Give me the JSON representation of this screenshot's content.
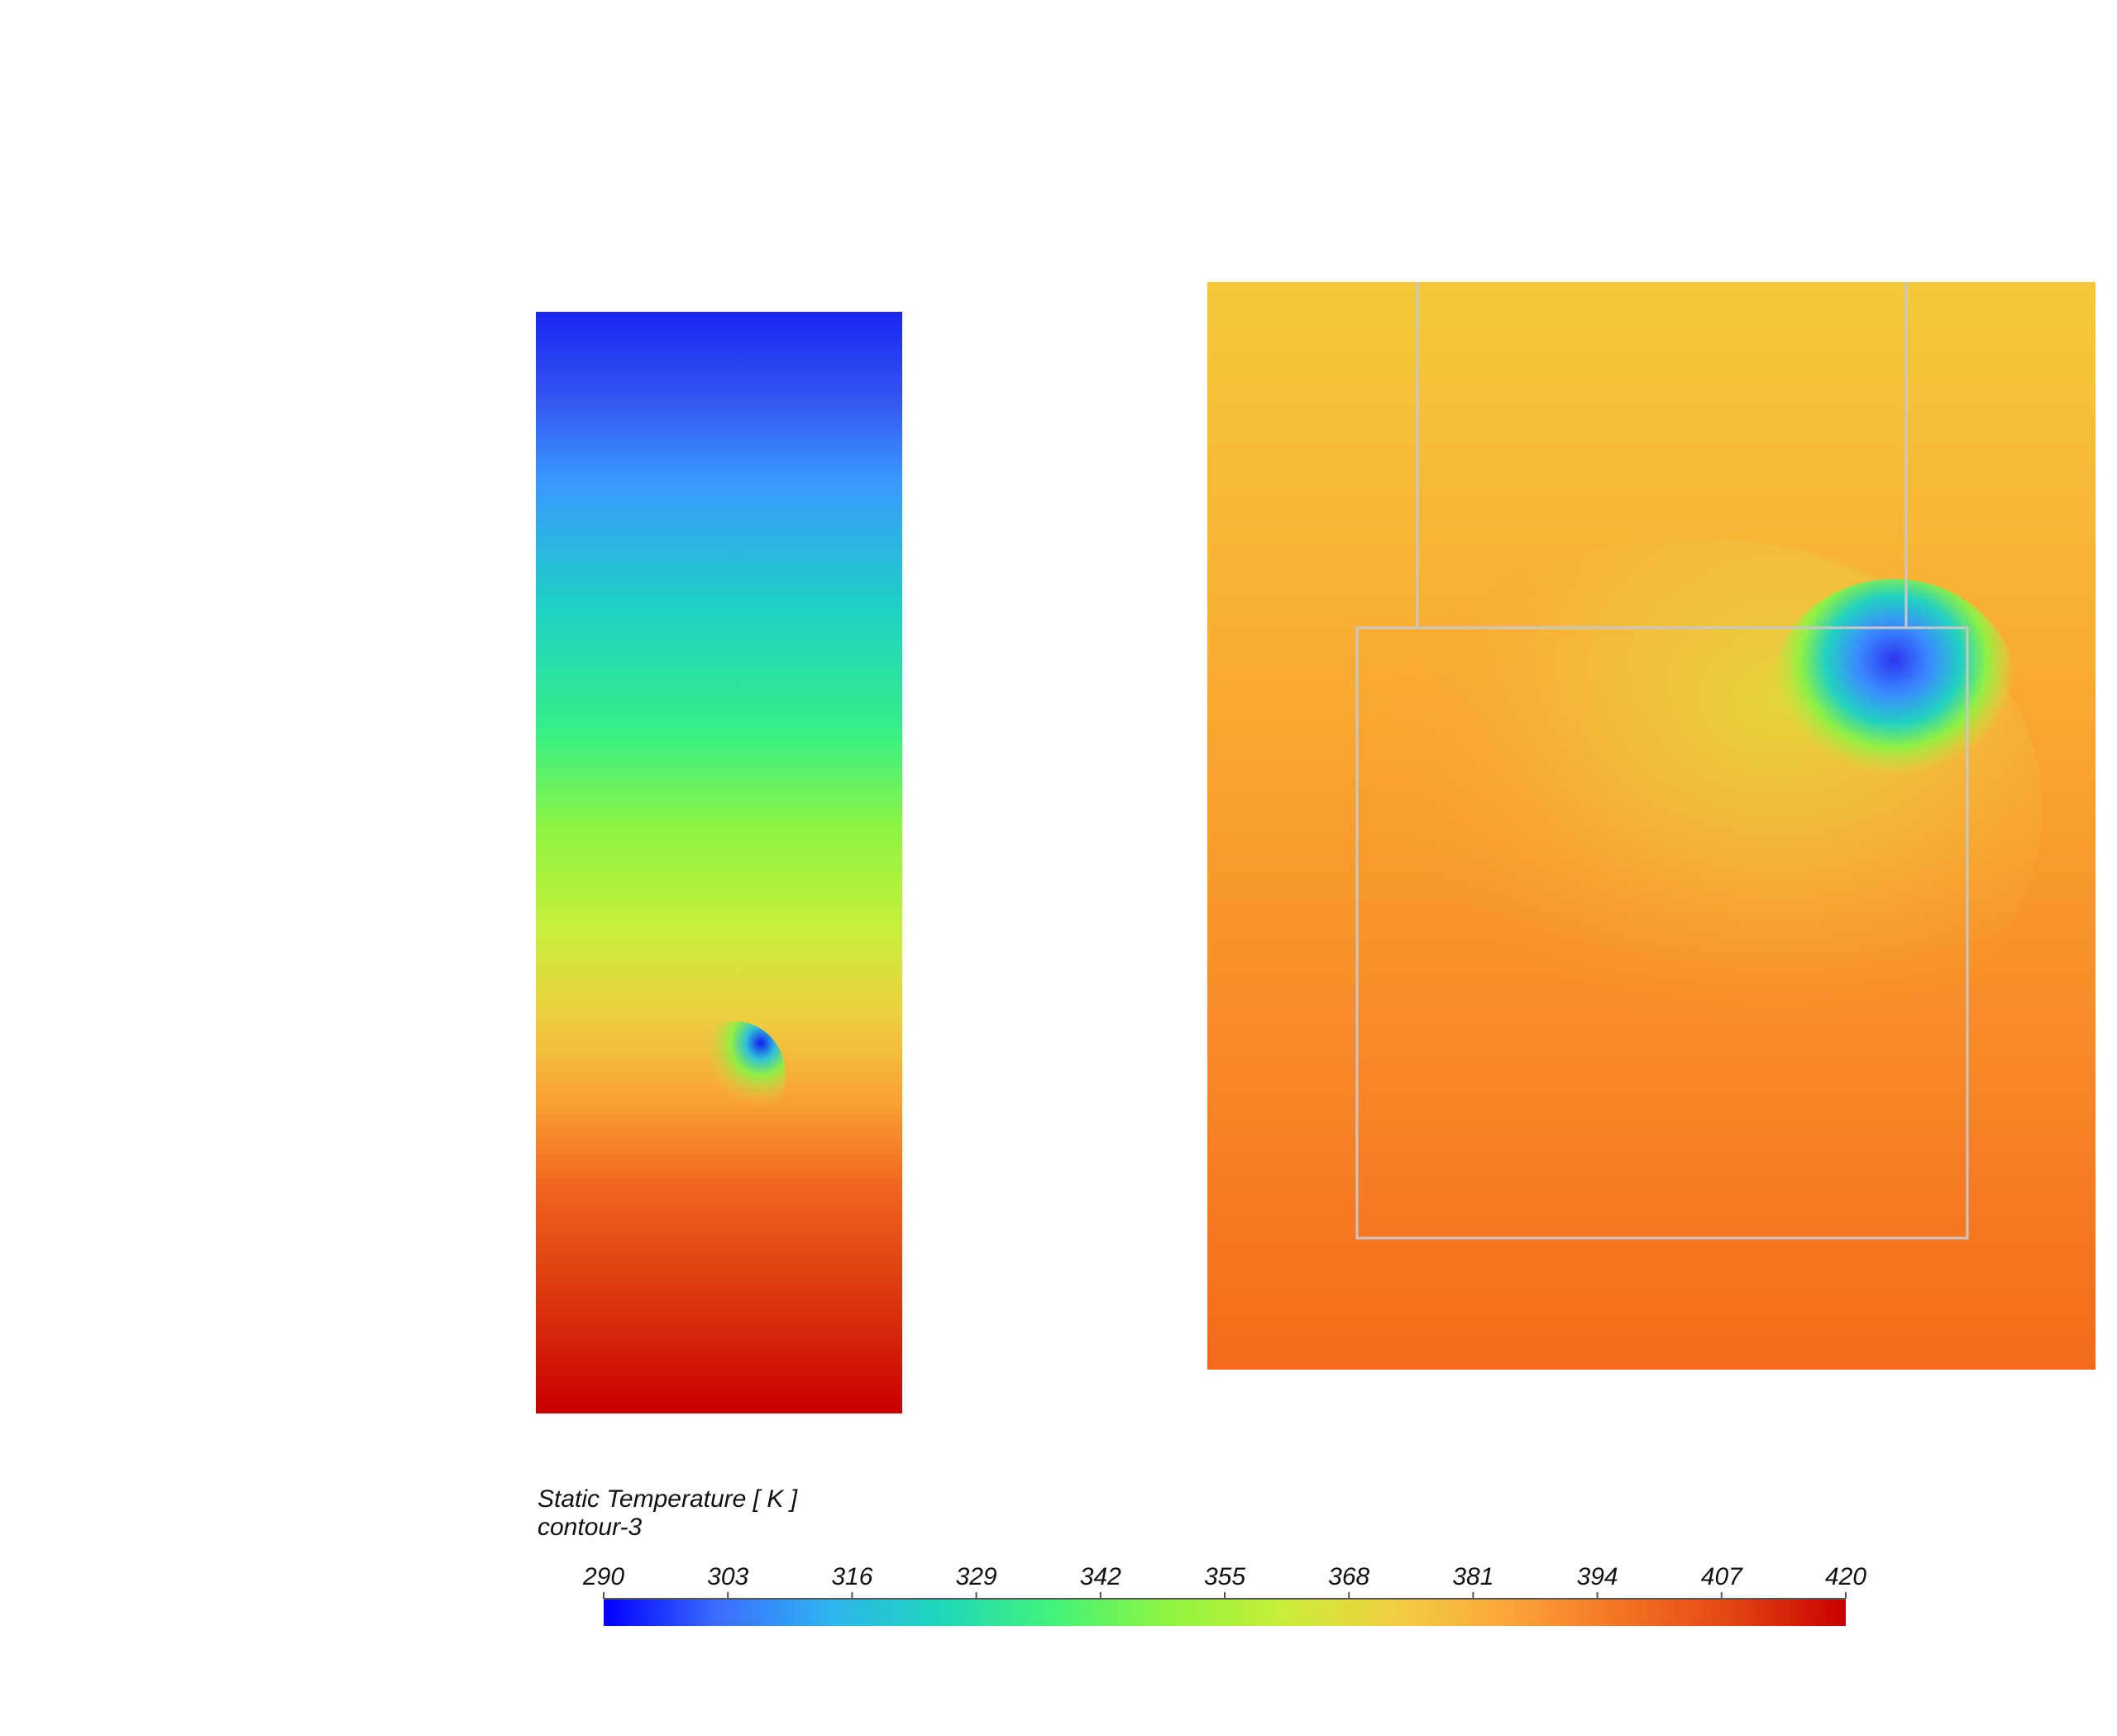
{
  "chart_data": {
    "type": "colorbar",
    "title": "Static Temperature [ K ]",
    "subtitle": "contour-3",
    "xlim": [
      290,
      420
    ],
    "xticks": [
      290,
      303,
      316,
      329,
      342,
      355,
      368,
      381,
      394,
      407,
      420
    ],
    "colormap": [
      "#0000ff",
      "#3a6cff",
      "#2eb4ef",
      "#1ed8b8",
      "#44f478",
      "#8ff540",
      "#c8ee38",
      "#f2cf42",
      "#fba63a",
      "#f47424",
      "#e24412",
      "#c80000"
    ]
  }
}
